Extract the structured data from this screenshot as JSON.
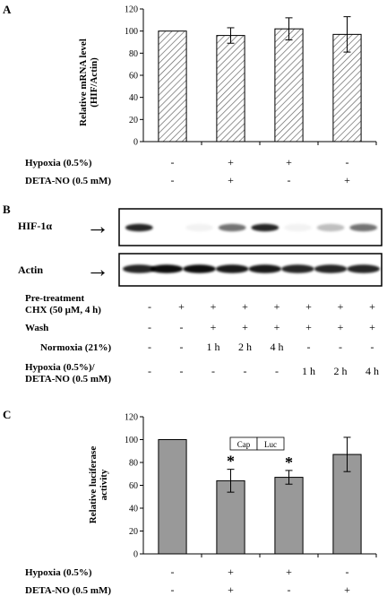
{
  "panels": {
    "a": "A",
    "b": "B",
    "c": "C"
  },
  "chart_data": [
    {
      "type": "bar",
      "panel": "A",
      "ylabel": "Relative mRNA level (HIF/Actin)",
      "ylim": [
        0,
        120
      ],
      "yticks": [
        0,
        20,
        40,
        60,
        80,
        100,
        120
      ],
      "categories": [
        "1",
        "2",
        "3",
        "4"
      ],
      "values": [
        100,
        96,
        102,
        97
      ],
      "errors": [
        0,
        7,
        10,
        16
      ],
      "fill": "diagonal-hatch",
      "grid": false,
      "conditions": [
        {
          "label": "Hypoxia (0.5%)",
          "values": [
            "-",
            "+",
            "+",
            "-"
          ]
        },
        {
          "label": "DETA-NO (0.5 mM)",
          "values": [
            "-",
            "+",
            "-",
            "+"
          ]
        }
      ]
    },
    {
      "type": "bar",
      "panel": "C",
      "ylabel": "Relative luciferase activity",
      "ylim": [
        0,
        120
      ],
      "yticks": [
        0,
        20,
        40,
        60,
        80,
        100,
        120
      ],
      "categories": [
        "1",
        "2",
        "3",
        "4"
      ],
      "values": [
        100,
        64,
        67,
        87
      ],
      "errors": [
        0,
        10,
        6,
        15
      ],
      "significance": [
        "",
        "*",
        "*",
        ""
      ],
      "fill": "#999999",
      "grid": false,
      "construct_labels": [
        "Cap",
        "Luc"
      ],
      "conditions": [
        {
          "label": "Hypoxia (0.5%)",
          "values": [
            "-",
            "+",
            "+",
            "-"
          ]
        },
        {
          "label": "DETA-NO (0.5 mM)",
          "values": [
            "-",
            "+",
            "-",
            "+"
          ]
        }
      ]
    }
  ],
  "blot": {
    "rows": [
      "HIF-1α",
      "Actin"
    ],
    "arrow": "→",
    "hif_intensity": [
      0.85,
      0,
      0.05,
      0.55,
      0.85,
      0.05,
      0.25,
      0.55
    ],
    "actin_intensity": [
      0.85,
      0.95,
      0.95,
      0.9,
      0.9,
      0.85,
      0.85,
      0.85
    ],
    "conditions": [
      {
        "label": "Pre-treatment",
        "label2": "CHX (50 µM, 4 h)",
        "values": [
          "-",
          "+",
          "+",
          "+",
          "+",
          "+",
          "+",
          "+"
        ]
      },
      {
        "label": "Wash",
        "values": [
          "-",
          "-",
          "+",
          "+",
          "+",
          "+",
          "+",
          "+"
        ]
      },
      {
        "label": "Normoxia (21%)",
        "values": [
          "-",
          "-",
          "1 h",
          "2 h",
          "4 h",
          "-",
          "-",
          "-"
        ]
      },
      {
        "label": "Hypoxia (0.5%)/",
        "label2": "DETA-NO (0.5 mM)",
        "values": [
          "-",
          "-",
          "-",
          "-",
          "-",
          "1 h",
          "2 h",
          "4 h"
        ]
      }
    ]
  }
}
